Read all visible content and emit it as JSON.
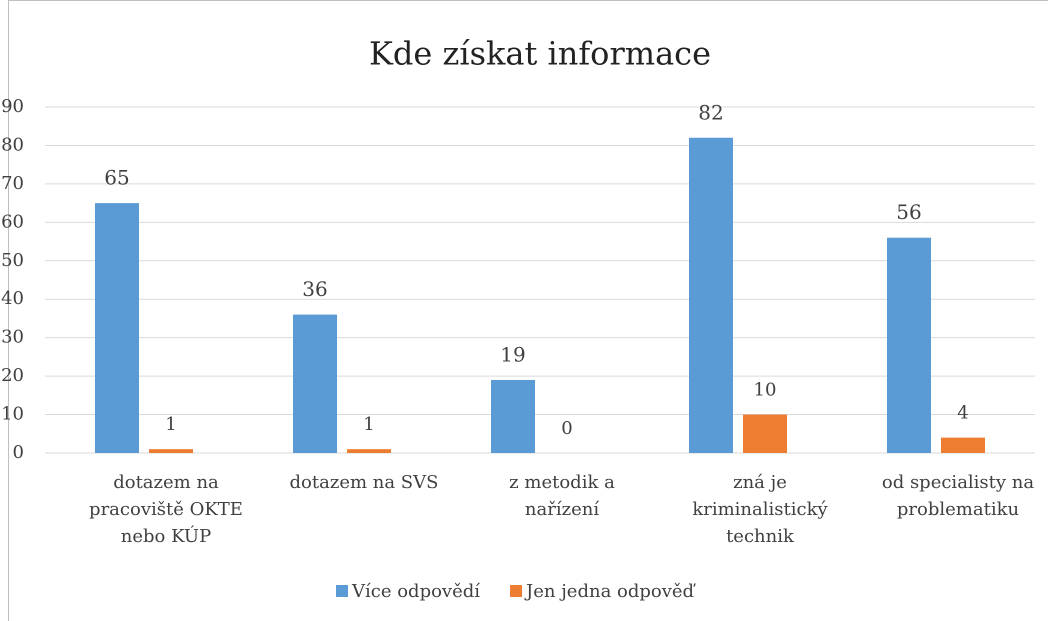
{
  "chart_data": {
    "type": "bar",
    "title": "Kde získat informace",
    "categories": [
      "dotazem na pracoviště OKTE nebo KÚP",
      "dotazem na SVS",
      "z metodik a nařízení",
      "zná je kriminalistický technik",
      "od specialisty na problematiku"
    ],
    "series": [
      {
        "name": "Více odpovědí",
        "color": "#5b9bd5",
        "values": [
          65,
          36,
          19,
          82,
          56
        ]
      },
      {
        "name": "Jen jedna odpověď",
        "color": "#ed7d31",
        "values": [
          1,
          1,
          0,
          10,
          4
        ]
      }
    ],
    "ylim": [
      0,
      90
    ],
    "yticks": [
      0,
      10,
      20,
      30,
      40,
      50,
      60,
      70,
      80,
      90
    ],
    "grid": true,
    "legend": "bottom"
  }
}
